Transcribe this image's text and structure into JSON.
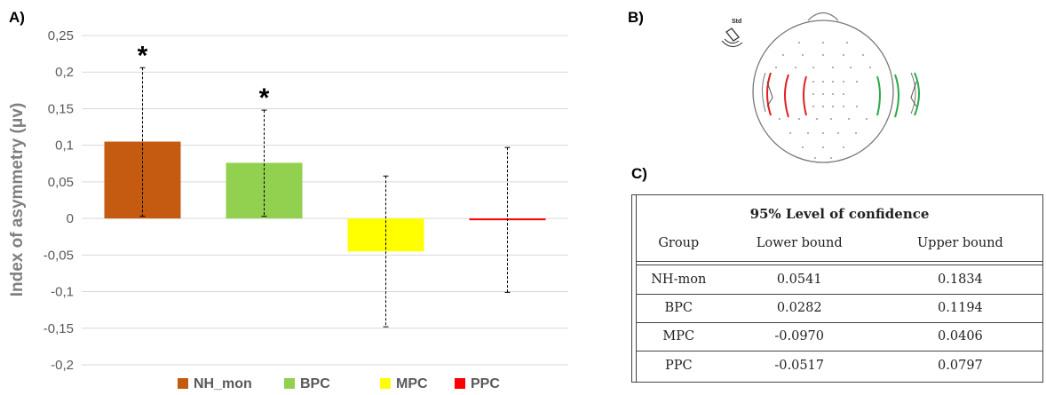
{
  "panels": {
    "a": "A)",
    "b": "B)",
    "c": "C)"
  },
  "chart_data": {
    "type": "bar",
    "categories": [
      "NH_mon",
      "BPC",
      "MPC",
      "PPC"
    ],
    "values": [
      0.105,
      0.076,
      -0.045,
      -0.002
    ],
    "error_low": [
      0.003,
      0.003,
      -0.148,
      -0.101
    ],
    "error_high": [
      0.206,
      0.148,
      0.058,
      0.097
    ],
    "colors": [
      "#c55a11",
      "#92d050",
      "#ffff00",
      "#ff0000"
    ],
    "significance": [
      "*",
      "*",
      "",
      ""
    ],
    "ylabel": "Index of asymmetry (μv)",
    "ylim": [
      -0.2,
      0.25
    ],
    "yticks": [
      -0.2,
      -0.15,
      -0.1,
      -0.05,
      0,
      0.05,
      0.1,
      0.15,
      0.2,
      0.25
    ],
    "ytick_labels": [
      "-0,2",
      "-0,15",
      "-0,1",
      "-0,05",
      "0",
      "0,05",
      "0,1",
      "0,15",
      "0,2",
      "0,25"
    ],
    "legend_labels": [
      "NH_mon",
      "BPC",
      "MPC",
      "PPC"
    ],
    "legend_position": "bottom",
    "grid": true
  },
  "head_map": {
    "label": "Std",
    "icon": "speaker-icon"
  },
  "ci_table": {
    "title": "95% Level of confidence",
    "headers": [
      "Group",
      "Lower bound",
      "Upper bound"
    ],
    "rows": [
      [
        "NH-mon",
        "0.0541",
        "0.1834"
      ],
      [
        "BPC",
        "0.0282",
        "0.1194"
      ],
      [
        "MPC",
        "-0.0970",
        "0.0406"
      ],
      [
        "PPC",
        "-0.0517",
        "0.0797"
      ]
    ]
  }
}
